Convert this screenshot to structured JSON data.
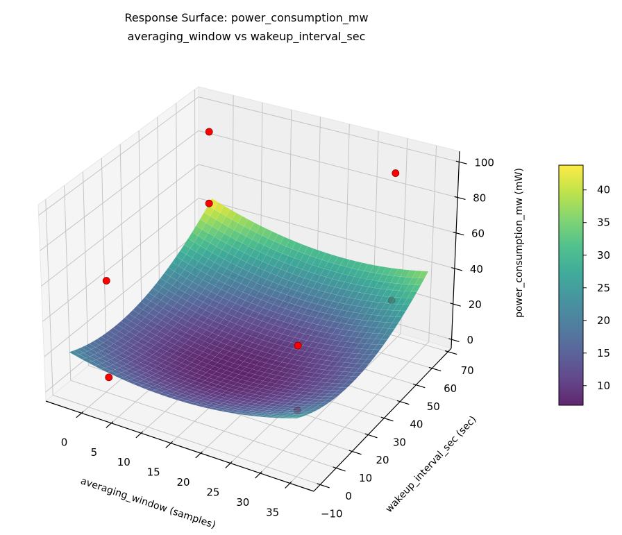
{
  "chart_data": {
    "type": "surface",
    "title": "Response Surface: power_consumption_mw",
    "subtitle": "averaging_window vs wakeup_interval_sec",
    "xlabel": "averaging_window (samples)",
    "ylabel": "wakeup_interval_sec (sec)",
    "zlabel": "power_consumption_mw (mW)",
    "xlim": [
      -6,
      39
    ],
    "ylim": [
      -14,
      72
    ],
    "zlim": [
      -5,
      106
    ],
    "xticks": [
      0,
      5,
      10,
      15,
      20,
      25,
      30,
      35
    ],
    "yticks": [
      -10,
      0,
      10,
      20,
      30,
      40,
      50,
      60,
      70
    ],
    "zticks": [
      0,
      20,
      40,
      60,
      80,
      100
    ],
    "grid": true,
    "colormap": "viridis",
    "surface": {
      "x_range": [
        -3,
        35
      ],
      "y_range": [
        -10,
        70
      ],
      "model": {
        "intercept": 7,
        "x_center": 16,
        "y_center": 20,
        "a_xx": 0.0257,
        "b_yy": 0.00969,
        "c_xy": -0.004
      },
      "alpha": 0.85
    },
    "colorbar": {
      "range": [
        7.0,
        43.8
      ],
      "ticks": [
        10,
        15,
        20,
        25,
        30,
        35,
        40
      ]
    },
    "points": [
      {
        "x": -1,
        "y": 5,
        "z": -2
      },
      {
        "x": -1,
        "y": 5,
        "z": 53
      },
      {
        "x": 31,
        "y": 5,
        "z": 14
      },
      {
        "x": 31,
        "y": 5,
        "z": 50
      },
      {
        "x": -1,
        "y": 62,
        "z": 50
      },
      {
        "x": -1,
        "y": 62,
        "z": 92
      },
      {
        "x": 31,
        "y": 62,
        "z": 24
      },
      {
        "x": 31,
        "y": 62,
        "z": 96
      }
    ],
    "point_color": "#ff0000",
    "point_edge_color": "#8b0000"
  }
}
